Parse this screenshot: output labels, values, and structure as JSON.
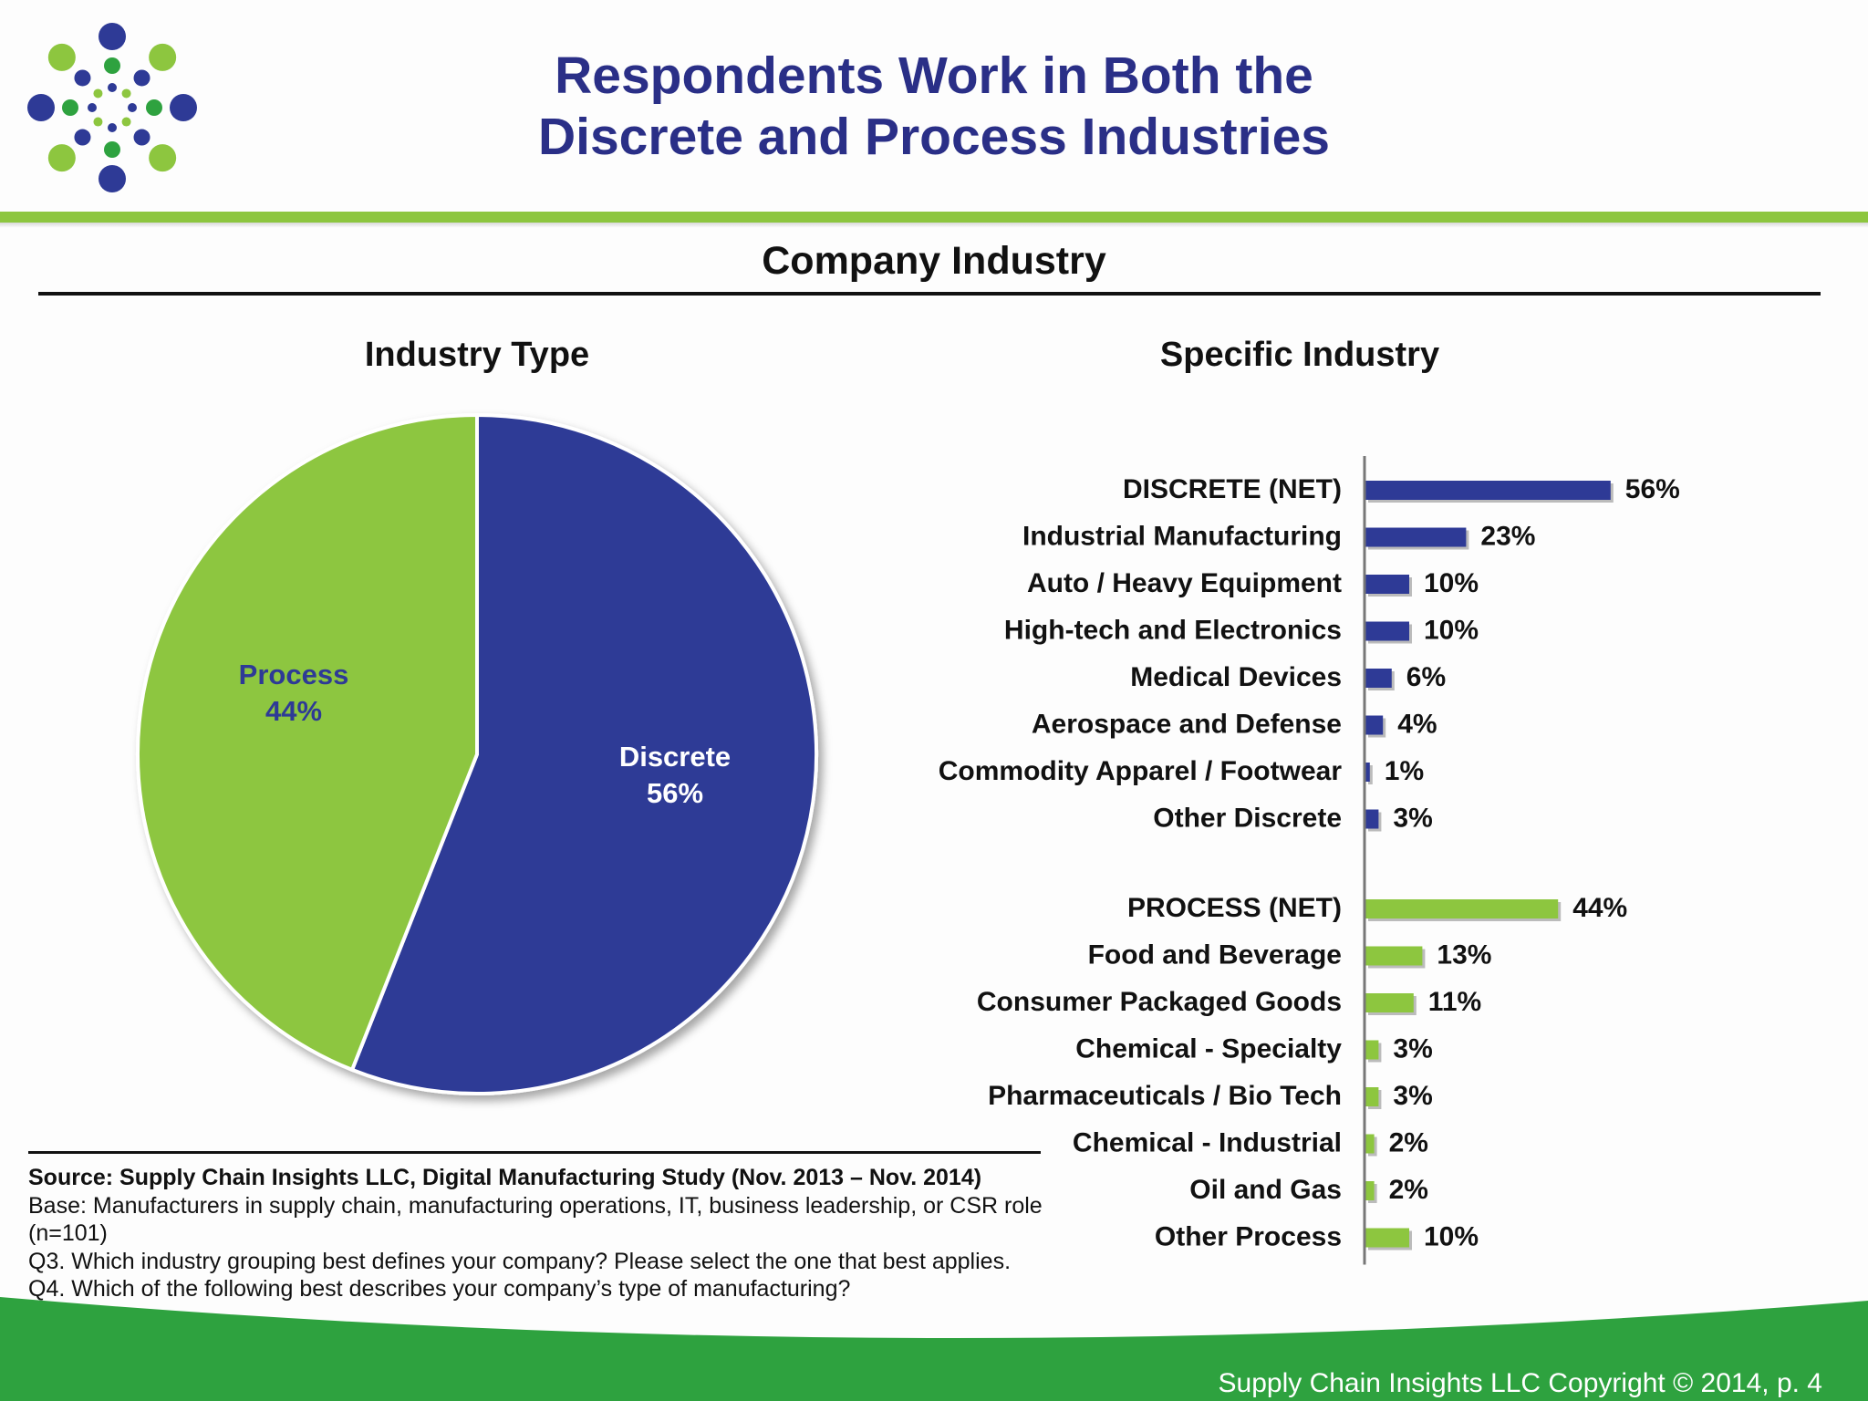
{
  "slide": {
    "title_line1": "Respondents Work in Both the",
    "title_line2": "Discrete and Process Industries",
    "subtitle": "Company Industry",
    "footer": "Supply Chain Insights LLC Copyright © 2014, p. 4"
  },
  "colors": {
    "discrete": "#2e3a96",
    "process": "#8dc63f",
    "title": "#2a2f87",
    "footer_band": "#2ea23f",
    "logo_blue": "#2e3a96",
    "logo_green": "#2ea23f",
    "logo_light_green": "#8dc63f"
  },
  "notes": {
    "source": "Source:  Supply Chain Insights LLC, Digital Manufacturing Study (Nov. 2013 – Nov. 2014)",
    "base": "Base: Manufacturers in supply chain, manufacturing operations, IT, business leadership, or CSR role (n=101)",
    "q3": "Q3. Which industry grouping best defines your company?  Please select the one that best applies.",
    "q4": "Q4. Which of the following best describes your company’s type of manufacturing?"
  },
  "chart_data": [
    {
      "type": "pie",
      "title": "Industry Type",
      "slices": [
        {
          "name": "Discrete",
          "value": 56,
          "label": "56%"
        },
        {
          "name": "Process",
          "value": 44,
          "label": "44%"
        }
      ]
    },
    {
      "type": "bar",
      "orientation": "horizontal",
      "title": "Specific Industry",
      "groups": [
        {
          "color_key": "discrete",
          "items": [
            {
              "label": "DISCRETE (NET)",
              "value": 56,
              "value_label": "56%"
            },
            {
              "label": "Industrial Manufacturing",
              "value": 23,
              "value_label": "23%"
            },
            {
              "label": "Auto / Heavy Equipment",
              "value": 10,
              "value_label": "10%"
            },
            {
              "label": "High-tech and Electronics",
              "value": 10,
              "value_label": "10%"
            },
            {
              "label": "Medical Devices",
              "value": 6,
              "value_label": "6%"
            },
            {
              "label": "Aerospace and Defense",
              "value": 4,
              "value_label": "4%"
            },
            {
              "label": "Commodity Apparel / Footwear",
              "value": 1,
              "value_label": "1%"
            },
            {
              "label": "Other Discrete",
              "value": 3,
              "value_label": "3%"
            }
          ]
        },
        {
          "color_key": "process",
          "items": [
            {
              "label": "PROCESS (NET)",
              "value": 44,
              "value_label": "44%"
            },
            {
              "label": "Food and Beverage",
              "value": 13,
              "value_label": "13%"
            },
            {
              "label": "Consumer Packaged Goods",
              "value": 11,
              "value_label": "11%"
            },
            {
              "label": "Chemical - Specialty",
              "value": 3,
              "value_label": "3%"
            },
            {
              "label": "Pharmaceuticals / Bio Tech",
              "value": 3,
              "value_label": "3%"
            },
            {
              "label": "Chemical - Industrial",
              "value": 2,
              "value_label": "2%"
            },
            {
              "label": "Oil and Gas",
              "value": 2,
              "value_label": "2%"
            },
            {
              "label": "Other Process",
              "value": 10,
              "value_label": "10%"
            }
          ]
        }
      ]
    }
  ]
}
